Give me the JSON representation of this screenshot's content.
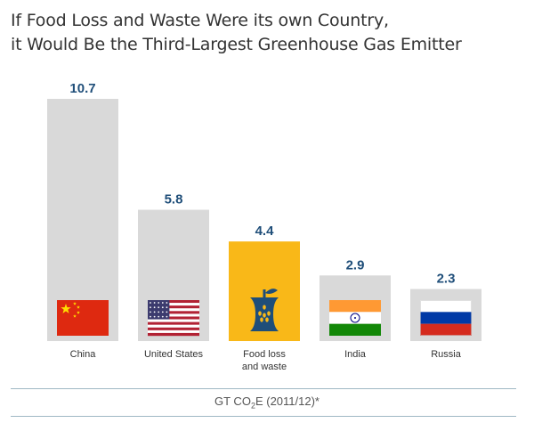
{
  "title_line1": "If Food Loss and Waste Were its own Country,",
  "title_line2": "it Would Be the Third-Largest Greenhouse Gas Emitter",
  "footer": {
    "main": "GT CO",
    "sub": "2",
    "rest": "E (2011/12)*"
  },
  "colors": {
    "bar_default": "#d9d9d9",
    "bar_highlight": "#f9b818",
    "value_label": "#1f4e79",
    "category_label": "#333333"
  },
  "chart_data": {
    "type": "bar",
    "title": "If Food Loss and Waste Were its own Country, it Would Be the Third-Largest Greenhouse Gas Emitter",
    "categories": [
      "China",
      "United States",
      "Food loss and waste",
      "India",
      "Russia"
    ],
    "category_lines": [
      [
        "China"
      ],
      [
        "United States"
      ],
      [
        "Food loss",
        "and waste"
      ],
      [
        "India"
      ],
      [
        "Russia"
      ]
    ],
    "values": [
      10.7,
      5.8,
      4.4,
      2.9,
      2.3
    ],
    "value_labels": [
      "10.7",
      "5.8",
      "4.4",
      "2.9",
      "2.3"
    ],
    "highlight_index": 2,
    "icons": [
      "china-flag-icon",
      "usa-flag-icon",
      "apple-core-icon",
      "india-flag-icon",
      "russia-flag-icon"
    ],
    "ylabel": "GT CO2E (2011/12)*",
    "ylim": [
      0,
      10.7
    ],
    "grid": false,
    "legend": "none"
  }
}
